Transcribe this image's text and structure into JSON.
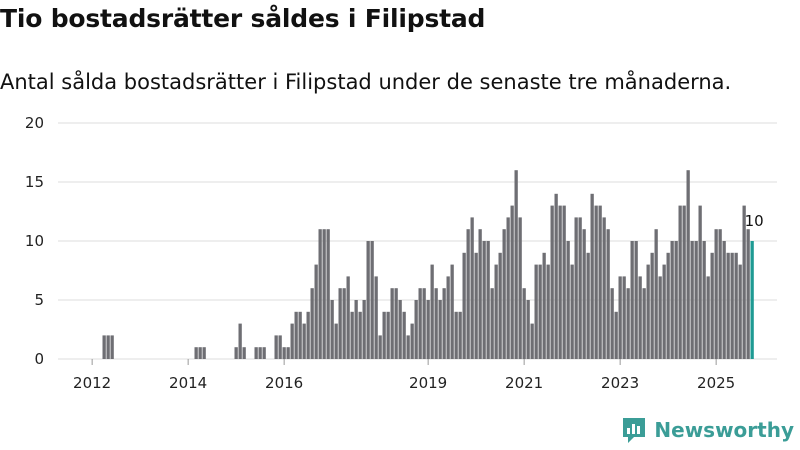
{
  "title": "Tio bostadsrätter såldes i Filipstad",
  "subtitle": "Antal sålda bostadsrätter i Filipstad under de senaste tre månaderna.",
  "brand": {
    "name": "Newsworthy",
    "color": "#3b9d97"
  },
  "colors": {
    "bar": "#6e6e73",
    "highlight": "#1e9a93"
  },
  "chart_data": {
    "type": "bar",
    "title": "Antal sålda bostadsrätter i Filipstad under de senaste tre månaderna.",
    "xlabel": "",
    "ylabel": "",
    "ylim": [
      0,
      20
    ],
    "y_ticks": [
      "0",
      "5",
      "10",
      "15",
      "20"
    ],
    "x_ticks": [
      {
        "label": "2012",
        "index": 7
      },
      {
        "label": "2014",
        "index": 31
      },
      {
        "label": "2016",
        "index": 55
      },
      {
        "label": "2019",
        "index": 91
      },
      {
        "label": "2021",
        "index": 115
      },
      {
        "label": "2023",
        "index": 139
      },
      {
        "label": "2025",
        "index": 163
      }
    ],
    "last_value_label": "10",
    "values": [
      0,
      0,
      0,
      0,
      0,
      0,
      0,
      0,
      0,
      0,
      2,
      2,
      2,
      0,
      0,
      0,
      0,
      0,
      0,
      0,
      0,
      0,
      0,
      0,
      0,
      0,
      0,
      0,
      0,
      0,
      0,
      0,
      0,
      1,
      1,
      1,
      0,
      0,
      0,
      0,
      0,
      0,
      0,
      1,
      3,
      1,
      0,
      0,
      1,
      1,
      1,
      0,
      0,
      2,
      2,
      1,
      1,
      3,
      4,
      4,
      3,
      4,
      6,
      8,
      11,
      11,
      11,
      5,
      3,
      6,
      6,
      7,
      4,
      5,
      4,
      5,
      10,
      10,
      7,
      2,
      4,
      4,
      6,
      6,
      5,
      4,
      2,
      3,
      5,
      6,
      6,
      5,
      8,
      6,
      5,
      6,
      7,
      8,
      4,
      4,
      9,
      11,
      12,
      9,
      11,
      10,
      10,
      6,
      8,
      9,
      11,
      12,
      13,
      16,
      12,
      6,
      5,
      3,
      8,
      8,
      9,
      8,
      13,
      14,
      13,
      13,
      10,
      8,
      12,
      12,
      11,
      9,
      14,
      13,
      13,
      12,
      11,
      6,
      4,
      7,
      7,
      6,
      10,
      10,
      7,
      6,
      8,
      9,
      11,
      7,
      8,
      9,
      10,
      10,
      13,
      13,
      16,
      10,
      10,
      13,
      10,
      7,
      9,
      11,
      11,
      10,
      9,
      9,
      9,
      8,
      13,
      11,
      10
    ],
    "highlight_last": true
  }
}
